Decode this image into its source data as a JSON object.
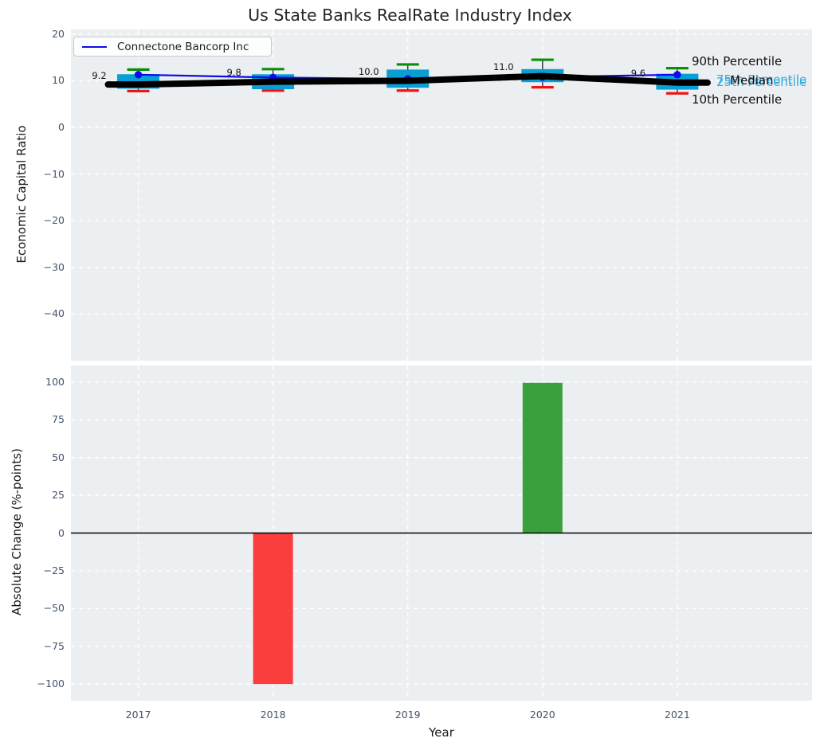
{
  "title": "Us State Banks RealRate Industry Index",
  "legend": {
    "items": [
      {
        "label": "Connectone Bancorp Inc",
        "color": "#0b0bee"
      }
    ]
  },
  "style": {
    "axes_bg": "#eceff1",
    "grid_color": "#ffffff",
    "tick_color": "#43536b",
    "text_color": "#1a1a1a",
    "box_fill": "#0a9fd4",
    "whisker_color": "#2a3340",
    "cap_90_color": "#0a8f0a",
    "cap_10_color": "#f01414",
    "median_line_color": "#000000",
    "company_color": "#0b0bee",
    "bar_positive": "#3aa03e",
    "bar_negative": "#fa3d3d",
    "annotation_cyan": "#36ace0"
  },
  "chart_data": [
    {
      "type": "boxplot",
      "panel": "top",
      "ylabel": "Economic Capital Ratio",
      "ylim": [
        -50,
        21
      ],
      "yticks": [
        20,
        10,
        0,
        -10,
        -20,
        -30,
        -40
      ],
      "xlim": [
        2016.5,
        2022.0
      ],
      "years": [
        2017,
        2018,
        2019,
        2020,
        2021
      ],
      "grid": "dashed-white",
      "percentile_90": [
        12.4,
        12.5,
        13.5,
        14.5,
        12.7
      ],
      "percentile_75": [
        11.4,
        11.4,
        12.4,
        12.5,
        11.5
      ],
      "median": [
        9.2,
        9.8,
        10.0,
        11.0,
        9.6
      ],
      "percentile_25": [
        8.3,
        8.2,
        8.5,
        9.7,
        8.1
      ],
      "percentile_10": [
        7.8,
        7.9,
        7.9,
        8.6,
        7.3
      ],
      "median_labels": [
        "9.2",
        "9.8",
        "10.0",
        "11.0",
        "9.6"
      ],
      "company_series": {
        "name": "Connectone Bancorp Inc",
        "values": [
          11.3,
          10.7,
          10.4,
          10.8,
          11.3
        ]
      },
      "annotations": [
        {
          "label": "90th Percentile",
          "color": "#111111",
          "x": 868,
          "y": 77
        },
        {
          "label": "75th Percentile",
          "color": "#36ace0",
          "x": 899,
          "y": 100
        },
        {
          "label": "25th Percentile",
          "color": "#36ace0",
          "x": 899,
          "y": 103
        },
        {
          "label": "Median",
          "color": "#111111",
          "x": 916,
          "y": 101
        },
        {
          "label": "10th Percentile",
          "color": "#111111",
          "x": 868,
          "y": 125
        }
      ]
    },
    {
      "type": "bar",
      "panel": "bottom",
      "xlabel": "Year",
      "ylabel": "Absolute Change (%-points)",
      "ylim": [
        -111,
        111
      ],
      "yticks": [
        100,
        75,
        50,
        25,
        0,
        -25,
        -50,
        -75,
        -100
      ],
      "xlim": [
        2016.5,
        2022.0
      ],
      "categories": [
        2017,
        2018,
        2019,
        2020,
        2021
      ],
      "values": [
        null,
        -100,
        null,
        99.5,
        null
      ],
      "zero_line": true
    }
  ]
}
